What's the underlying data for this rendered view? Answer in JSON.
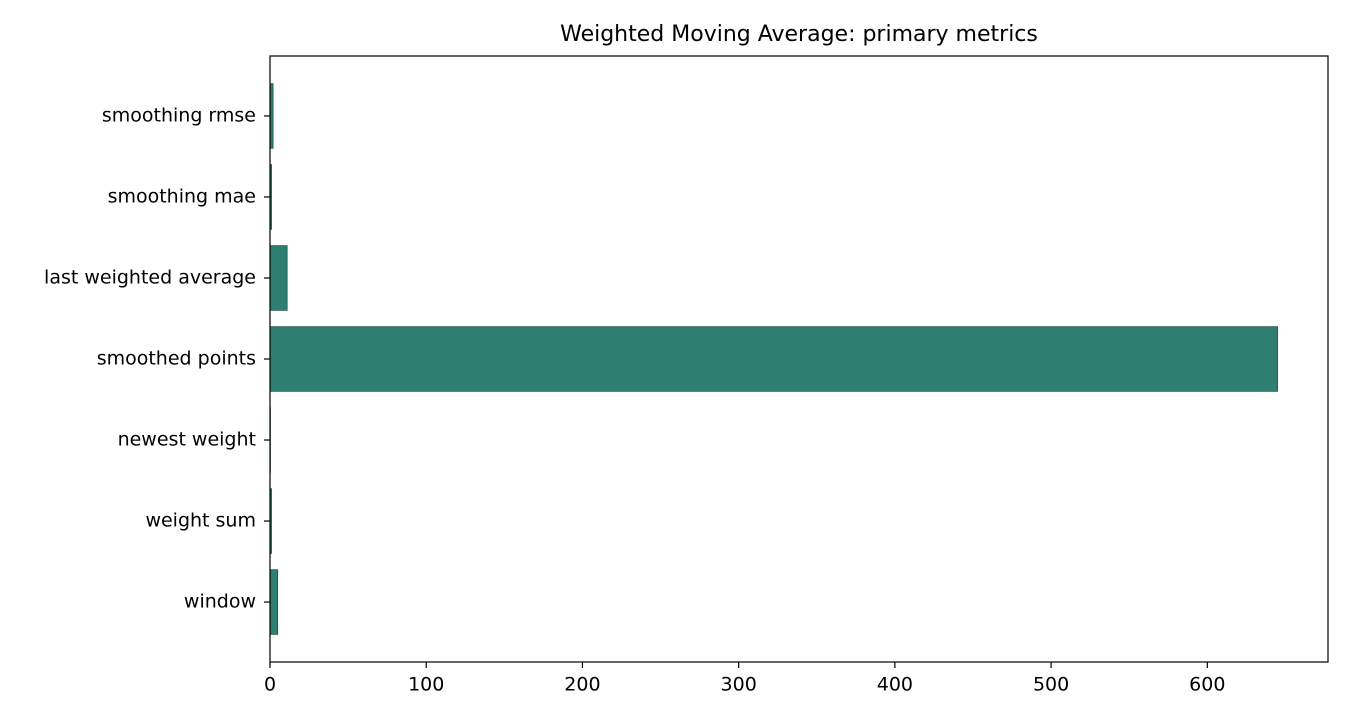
{
  "chart_data": {
    "type": "barh",
    "title": "Weighted Moving Average: primary metrics",
    "categories": [
      "window",
      "weight sum",
      "newest weight",
      "smoothed points",
      "last weighted average",
      "smoothing mae",
      "smoothing rmse"
    ],
    "values": [
      5,
      1,
      0.3,
      645,
      11,
      1,
      2
    ],
    "color": "#2e7f6f",
    "xlim": [
      0,
      677.25
    ],
    "xticks": [
      0,
      100,
      200,
      300,
      400,
      500,
      600
    ]
  }
}
